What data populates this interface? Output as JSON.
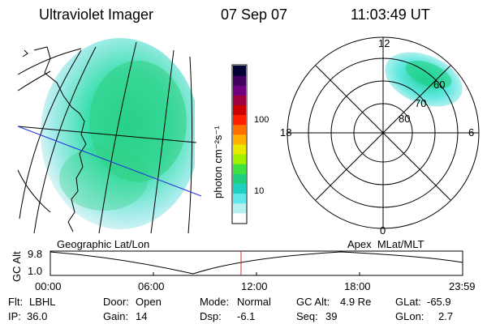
{
  "header": {
    "instrument": "Ultraviolet Imager",
    "date": "07 Sep 07",
    "time": "11:03:49 UT"
  },
  "geo_panel": {
    "label": "Geographic Lat/Lon"
  },
  "colorbar": {
    "unit_label": "photon cm⁻²s⁻¹",
    "ticks": [
      "100",
      "10"
    ],
    "colors": [
      "#000033",
      "#400060",
      "#700080",
      "#a00040",
      "#cc0000",
      "#ff2000",
      "#ff7000",
      "#ffb000",
      "#e8e800",
      "#a0f000",
      "#40e040",
      "#20d080",
      "#20d0c0",
      "#60e8e8",
      "#b8f0f0",
      "#ffffff"
    ]
  },
  "polar_panel": {
    "label": "Apex  MLat/MLT",
    "mlt_labels": {
      "top": "12",
      "left": "18",
      "right": "6",
      "bottom": "0"
    },
    "lat_labels": [
      "60",
      "70",
      "80"
    ]
  },
  "altitude_plot": {
    "ylabel": "GC Alt",
    "yticks": [
      "9.8",
      "1.0"
    ],
    "xticks": [
      "00:00",
      "06:00",
      "12:00",
      "18:00",
      "23:59"
    ],
    "marker_time": "11:03:49",
    "marker_color": "#cc3333"
  },
  "status": {
    "rows": [
      [
        {
          "key": "Flt:",
          "value": "LBHL"
        },
        {
          "key": "Door:",
          "value": "Open"
        },
        {
          "key": "Mode:",
          "value": "Normal"
        },
        {
          "key": "GC Alt:",
          "value": "4.9 Re"
        },
        {
          "key": "GLat:",
          "value": "-65.9"
        }
      ],
      [
        {
          "key": "IP:",
          "value": "36.0"
        },
        {
          "key": "Gain:",
          "value": "14"
        },
        {
          "key": "Dsp:",
          "value": "-6.1"
        },
        {
          "key": "Seq:",
          "value": "39"
        },
        {
          "key": "GLon:",
          "value": "2.7"
        }
      ]
    ]
  }
}
